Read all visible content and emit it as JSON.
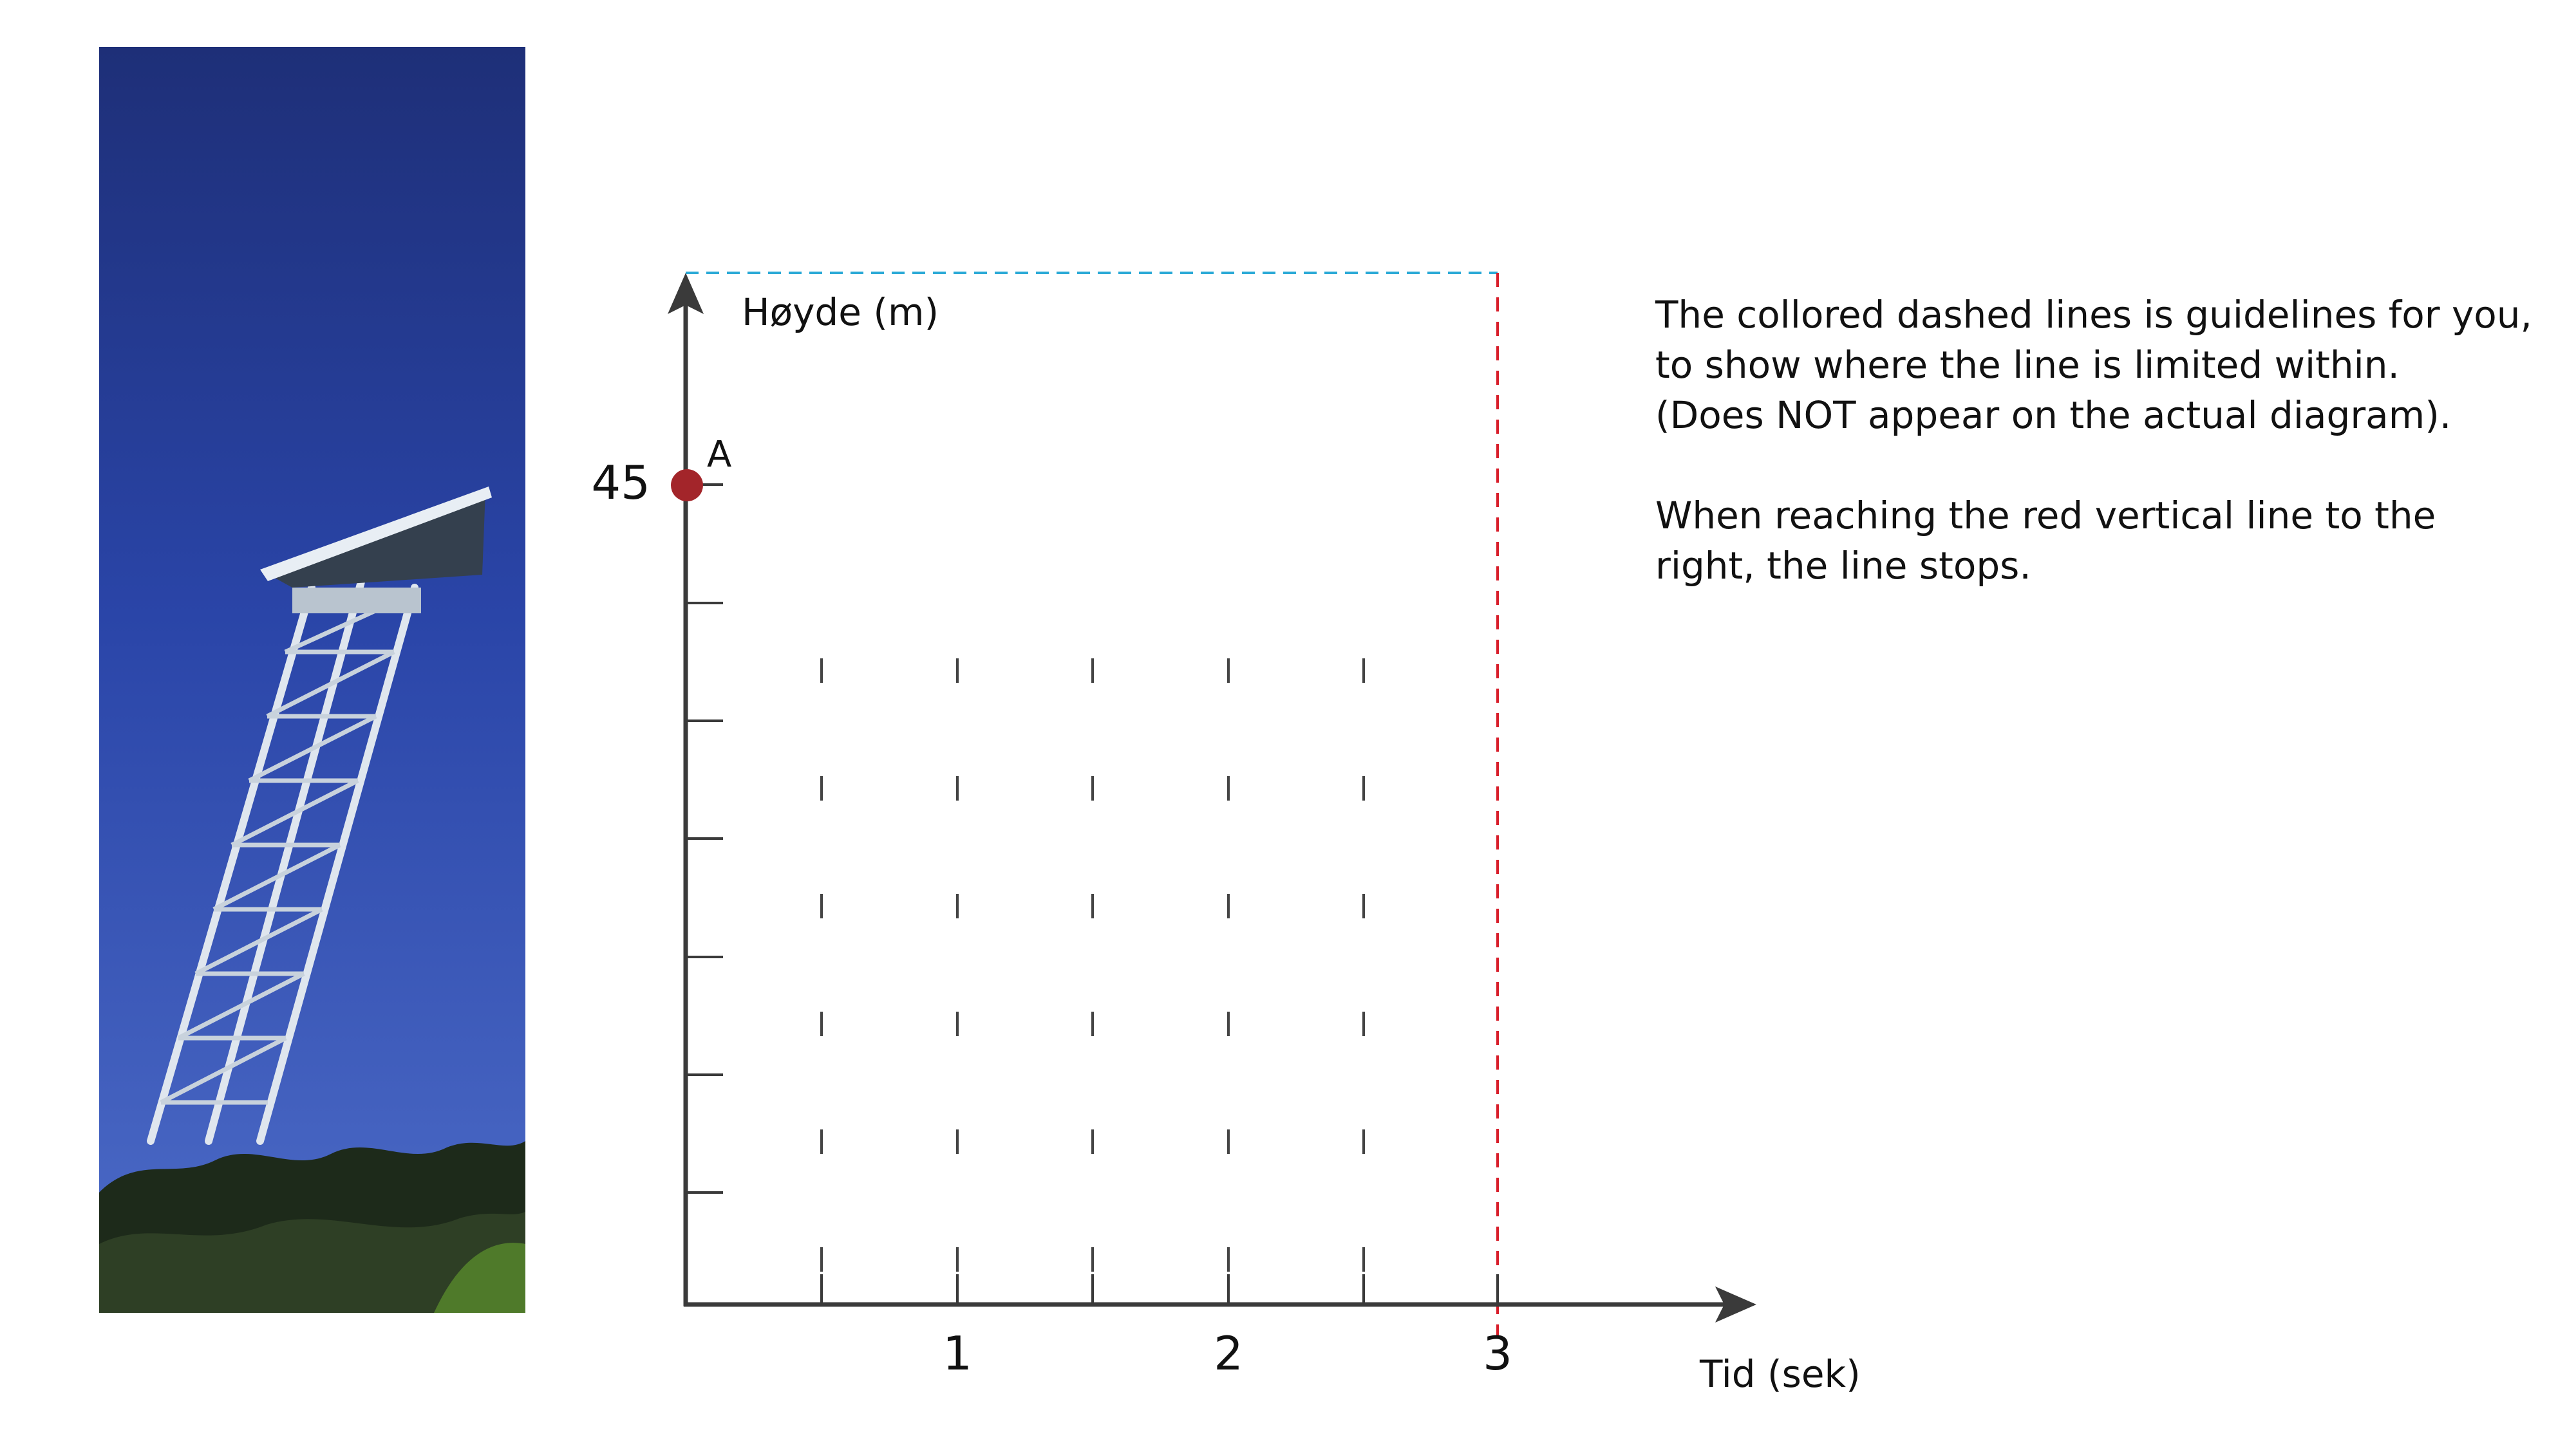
{
  "image": {
    "description_icon": "leaning-observation-tower-photo"
  },
  "graph": {
    "y_label": "Høyde (m)",
    "x_label": "Tid (sek)",
    "y_tick_label": "45",
    "x_tick_labels": [
      "1",
      "2",
      "3"
    ],
    "point_label": "A",
    "point": {
      "t": 0,
      "h": 45
    },
    "x_range": [
      0,
      3
    ],
    "guide_colors": {
      "blue": "#2aa9d6",
      "red": "#d81e2a"
    },
    "point_color": "#a3252a",
    "axis_color": "#3a3a3a"
  },
  "note": {
    "paragraph1": "The collored dashed lines is guidelines for you,\nto show where the line is limited within.\n(Does NOT appear on the actual diagram).",
    "paragraph2": "When reaching the red vertical line to the\nright, the line stops."
  }
}
